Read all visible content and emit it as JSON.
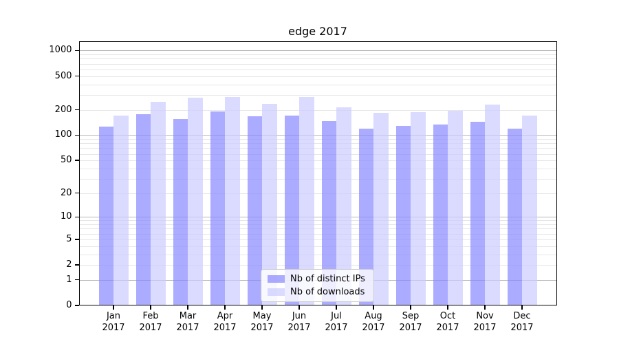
{
  "title": "edge 2017",
  "legend": {
    "items": [
      {
        "label": "Nb of distinct IPs",
        "color": "#8888ff"
      },
      {
        "label": "Nb of downloads",
        "color": "#ccccff"
      }
    ]
  },
  "chart_data": {
    "type": "bar",
    "title": "edge 2017",
    "categories": [
      "Jan 2017",
      "Feb 2017",
      "Mar 2017",
      "Apr 2017",
      "May 2017",
      "Jun 2017",
      "Jul 2017",
      "Aug 2017",
      "Sep 2017",
      "Oct 2017",
      "Nov 2017",
      "Dec 2017"
    ],
    "series": [
      {
        "name": "Nb of distinct IPs",
        "color": "#8888ff",
        "values": [
          126,
          177,
          156,
          191,
          166,
          170,
          146,
          119,
          128,
          134,
          145,
          119
        ]
      },
      {
        "name": "Nb of downloads",
        "color": "#ccccff",
        "values": [
          170,
          246,
          276,
          283,
          235,
          283,
          215,
          185,
          188,
          193,
          232,
          172
        ]
      }
    ],
    "xlabel": "",
    "ylabel": "",
    "yscale": "log1p",
    "yticks": [
      0,
      1,
      2,
      5,
      10,
      20,
      50,
      100,
      200,
      500,
      1000
    ],
    "ylim": [
      0,
      1285
    ],
    "grid": true,
    "legend_position": "lower center",
    "colors": {
      "bar_alpha": "0.7",
      "major_grid": "#b6b6b6",
      "minor_grid": "#e6e6e6"
    }
  }
}
